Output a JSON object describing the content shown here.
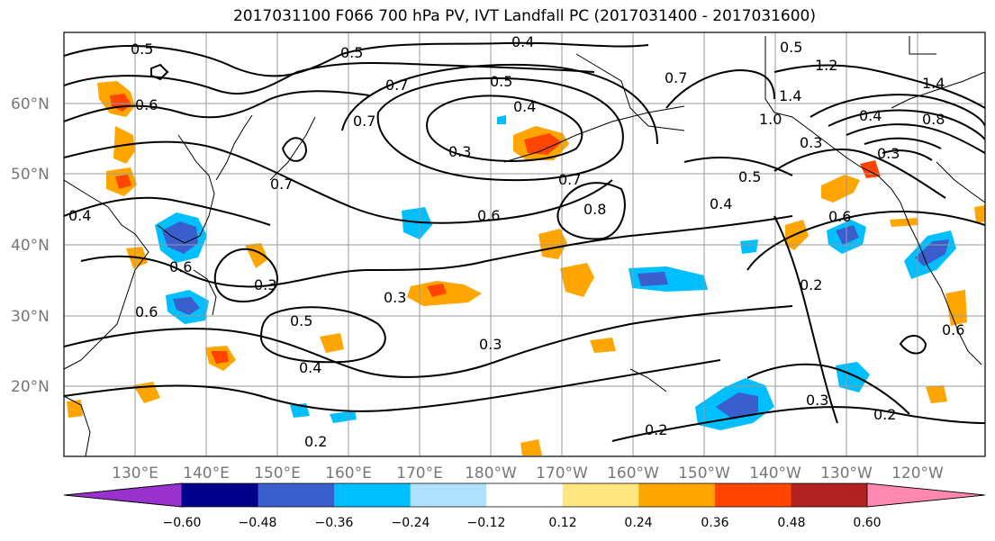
{
  "title": "2017031100 F066 700 hPa PV, IVT Landfall PC (2017031400 - 2017031600)",
  "lat_labels": [
    "60°N",
    "50°N",
    "40°N",
    "30°N",
    "20°N"
  ],
  "lon_labels": [
    "130°E",
    "140°E",
    "150°E",
    "160°E",
    "170°E",
    "180°W",
    "170°W",
    "160°W",
    "150°W",
    "140°W",
    "130°W",
    "120°W"
  ],
  "colorbar": {
    "ticks": [
      "−0.60",
      "−0.48",
      "−0.36",
      "−0.24",
      "−0.12",
      "0.12",
      "0.24",
      "0.36",
      "0.48",
      "0.60"
    ],
    "colors": [
      "#9932cc",
      "#00008b",
      "#3a5fcd",
      "#00bfff",
      "#b0e2ff",
      "#ffffff",
      "#ffe680",
      "#ffa500",
      "#ff4500",
      "#b22222",
      "#ff88b0"
    ]
  },
  "contour_labels": [
    "0.5",
    "0.6",
    "0.5",
    "0.4",
    "0.7",
    "0.5",
    "0.4",
    "0.3",
    "0.7",
    "0.6",
    "0.7",
    "0.8",
    "0.5",
    "0.4",
    "0.3",
    "0.3",
    "0.5",
    "0.4",
    "0.3",
    "0.2",
    "0.2",
    "0.3",
    "0.2",
    "0.6",
    "0.6",
    "0.6",
    "0.4",
    "0.3",
    "0.2",
    "1.2",
    "1.4",
    "1.0",
    "0.4",
    "0.8",
    "0.3",
    "0.7",
    "0.5",
    "1.4",
    "0.7",
    "0.6"
  ]
}
